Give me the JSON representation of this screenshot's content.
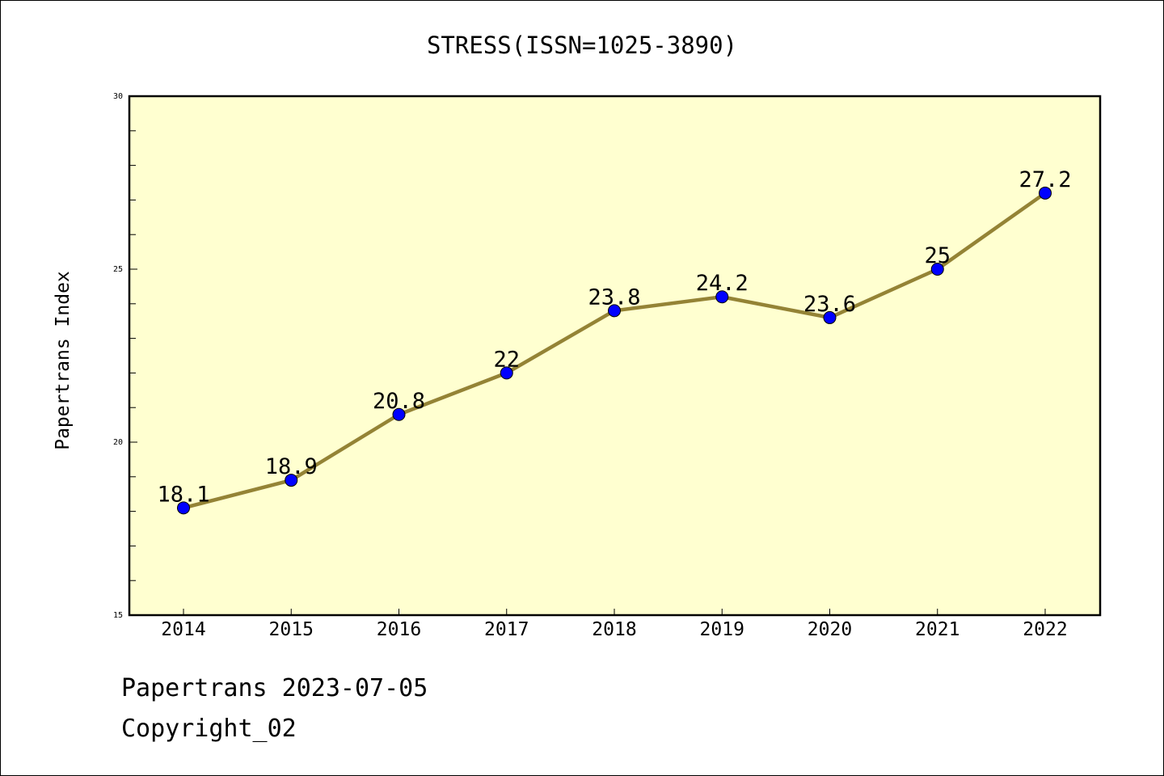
{
  "chart_data": {
    "type": "line",
    "title": "STRESS(ISSN=1025-3890)",
    "xlabel": "",
    "ylabel": "Papertrans Index",
    "categories": [
      "2014",
      "2015",
      "2016",
      "2017",
      "2018",
      "2019",
      "2020",
      "2021",
      "2022"
    ],
    "series": [
      {
        "values": [
          18.1,
          18.9,
          20.8,
          22,
          23.8,
          24.2,
          23.6,
          25,
          27.2
        ],
        "data_labels": [
          "18.1",
          "18.9",
          "20.8",
          "22",
          "23.8",
          "24.2",
          "23.6",
          "25",
          "27.2"
        ]
      }
    ],
    "ylim": [
      15,
      30
    ],
    "y_ticks": [
      15,
      20,
      25,
      30
    ],
    "y_tick_labels": [
      "15",
      "20",
      "25",
      "30"
    ],
    "grid": false,
    "colors": {
      "plot_background": "#ffffd0",
      "line": "#948335",
      "marker": "#0000ff",
      "axis": "#000000"
    }
  },
  "footer": {
    "date_text": "Papertrans 2023-07-05",
    "copyright_text": "Copyright_02"
  }
}
